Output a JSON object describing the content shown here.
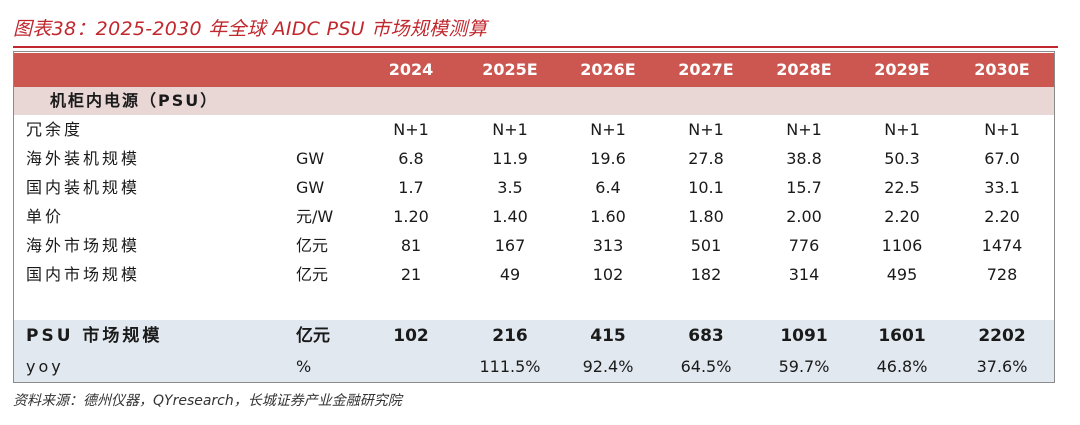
{
  "figure": {
    "title": "图表38：2025-2030 年全球 AIDC PSU 市场规模测算",
    "source": "资料来源：德州仪器，QYresearch，长城证券产业金融研究院"
  },
  "table": {
    "header": [
      "2024",
      "2025E",
      "2026E",
      "2027E",
      "2028E",
      "2029E",
      "2030E"
    ],
    "section": "机柜内电源（PSU）",
    "rows": [
      {
        "label": "冗余度",
        "unit": "",
        "values": [
          "N+1",
          "N+1",
          "N+1",
          "N+1",
          "N+1",
          "N+1",
          "N+1"
        ]
      },
      {
        "label": "海外装机规模",
        "unit": "GW",
        "values": [
          "6.8",
          "11.9",
          "19.6",
          "27.8",
          "38.8",
          "50.3",
          "67.0"
        ]
      },
      {
        "label": "国内装机规模",
        "unit": "GW",
        "values": [
          "1.7",
          "3.5",
          "6.4",
          "10.1",
          "15.7",
          "22.5",
          "33.1"
        ]
      },
      {
        "label": "单价",
        "unit": "元/W",
        "values": [
          "1.20",
          "1.40",
          "1.60",
          "1.80",
          "2.00",
          "2.20",
          "2.20"
        ]
      },
      {
        "label": "海外市场规模",
        "unit": "亿元",
        "values": [
          "81",
          "167",
          "313",
          "501",
          "776",
          "1106",
          "1474"
        ]
      },
      {
        "label": "国内市场规模",
        "unit": "亿元",
        "values": [
          "21",
          "49",
          "102",
          "182",
          "314",
          "495",
          "728"
        ]
      }
    ],
    "summary": {
      "label": "PSU 市场规模",
      "unit": "亿元",
      "values": [
        "102",
        "216",
        "415",
        "683",
        "1091",
        "1601",
        "2202"
      ]
    },
    "yoy": {
      "label": "yoy",
      "unit": "%",
      "values": [
        "",
        "111.5%",
        "92.4%",
        "64.5%",
        "59.7%",
        "46.8%",
        "37.6%"
      ]
    }
  },
  "colors": {
    "title_red": "#c0282e",
    "header_bg": "#cc5751",
    "section_bg": "#e9d7d6",
    "summary_bg": "#e1e8ef"
  }
}
